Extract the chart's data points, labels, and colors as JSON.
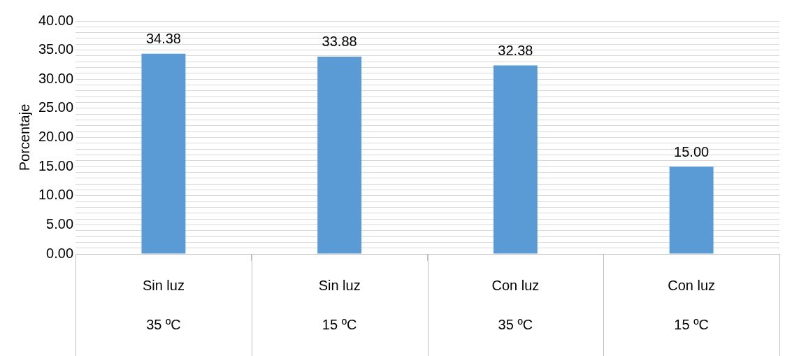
{
  "chart_data": {
    "type": "bar",
    "ylabel": "Porcentaje",
    "categories": [
      "Sin luz\n35 ºC",
      "Sin luz\n15 ºC",
      "Con luz\n35 ºC",
      "Con luz\n15 ºC"
    ],
    "values": [
      34.38,
      33.88,
      32.38,
      15.0
    ],
    "color": "#5b9bd5",
    "ylim": [
      0,
      40
    ],
    "yticks": [
      {
        "value": 0,
        "label": "0.00"
      },
      {
        "value": 1,
        "label": null
      },
      {
        "value": 2,
        "label": null
      },
      {
        "value": 3,
        "label": null
      },
      {
        "value": 4,
        "label": null
      },
      {
        "value": 5,
        "label": "5.00"
      },
      {
        "value": 6,
        "label": null
      },
      {
        "value": 7,
        "label": null
      },
      {
        "value": 8,
        "label": null
      },
      {
        "value": 9,
        "label": null
      },
      {
        "value": 10,
        "label": "10.00"
      },
      {
        "value": 11,
        "label": null
      },
      {
        "value": 12,
        "label": null
      },
      {
        "value": 13,
        "label": null
      },
      {
        "value": 14,
        "label": null
      },
      {
        "value": 15,
        "label": "15.00"
      },
      {
        "value": 16,
        "label": null
      },
      {
        "value": 17,
        "label": null
      },
      {
        "value": 18,
        "label": null
      },
      {
        "value": 19,
        "label": null
      },
      {
        "value": 20,
        "label": "20.00"
      },
      {
        "value": 21,
        "label": null
      },
      {
        "value": 22,
        "label": null
      },
      {
        "value": 23,
        "label": null
      },
      {
        "value": 24,
        "label": null
      },
      {
        "value": 25,
        "label": "25.00"
      },
      {
        "value": 26,
        "label": null
      },
      {
        "value": 27,
        "label": null
      },
      {
        "value": 28,
        "label": null
      },
      {
        "value": 29,
        "label": null
      },
      {
        "value": 30,
        "label": "30.00"
      },
      {
        "value": 31,
        "label": null
      },
      {
        "value": 32,
        "label": null
      },
      {
        "value": 33,
        "label": null
      },
      {
        "value": 34,
        "label": null
      },
      {
        "value": 35,
        "label": "35.00"
      },
      {
        "value": 36,
        "label": null
      },
      {
        "value": 37,
        "label": null
      },
      {
        "value": 38,
        "label": null
      },
      {
        "value": 39,
        "label": null
      },
      {
        "value": 40,
        "label": "40.00"
      }
    ],
    "value_labels": [
      "34.38",
      "33.88",
      "32.38",
      "15.00"
    ],
    "grid": "y"
  }
}
